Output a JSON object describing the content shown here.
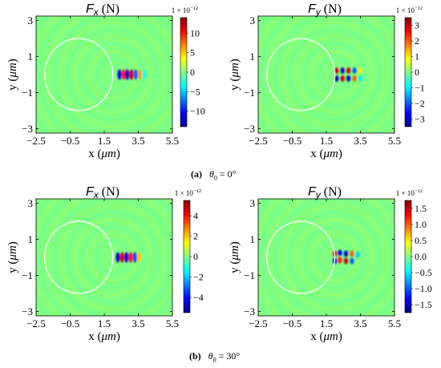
{
  "colormap": [
    "#00008f",
    "#0000ff",
    "#0080ff",
    "#00ffff",
    "#80ff80",
    "#ffff00",
    "#ff8000",
    "#ff0000",
    "#800000"
  ],
  "background_color": "#80ff80",
  "circle_color": "#ffffff",
  "chart_data": [
    {
      "type": "heatmap",
      "title_var": "F",
      "title_sub": "x",
      "title_unit": "(N)",
      "multiplier": "1 × 10",
      "exponent": "−12",
      "xlabel_var": "x",
      "xlabel_unit": "μm",
      "ylabel_var": "y",
      "ylabel_unit": "μm",
      "xlim": [
        -2.5,
        5.5
      ],
      "ylim": [
        -3.25,
        3.25
      ],
      "xticks": [
        -2.5,
        -0.5,
        1.5,
        3.5,
        5.5
      ],
      "xticklabels": [
        "−2.5",
        "−0.5",
        "1.5",
        "3.5",
        "5.5"
      ],
      "yticks": [
        -3,
        -1,
        1,
        3
      ],
      "yticklabels": [
        "−3",
        "−1",
        "1",
        "3"
      ],
      "clim": [
        -14,
        14
      ],
      "cticks": [
        10,
        5,
        0,
        -5,
        -10
      ],
      "cticklabels": [
        "10",
        "5",
        "0",
        "−5",
        "−10"
      ],
      "circle": {
        "cx": 0,
        "cy": 0,
        "r": 2
      },
      "hotspots": [
        {
          "x": 2.4,
          "y": 0,
          "v": -11
        },
        {
          "x": 2.65,
          "y": 0,
          "v": 10
        },
        {
          "x": 2.85,
          "y": 0,
          "v": -12
        },
        {
          "x": 3.1,
          "y": 0,
          "v": 12
        },
        {
          "x": 3.35,
          "y": 0,
          "v": -8
        },
        {
          "x": 3.6,
          "y": 0,
          "v": 6
        },
        {
          "x": 3.85,
          "y": 0,
          "v": -3
        }
      ]
    },
    {
      "type": "heatmap",
      "title_var": "F",
      "title_sub": "y",
      "title_unit": "(N)",
      "multiplier": "1 × 10",
      "exponent": "−12",
      "xlabel_var": "x",
      "xlabel_unit": "μm",
      "ylabel_var": "y",
      "ylabel_unit": "μm",
      "xlim": [
        -2.5,
        5.5
      ],
      "ylim": [
        -3.25,
        3.25
      ],
      "xticks": [
        -2.5,
        -0.5,
        1.5,
        3.5,
        5.5
      ],
      "xticklabels": [
        "−2.5",
        "−0.5",
        "1.5",
        "3.5",
        "5.5"
      ],
      "yticks": [
        -3,
        -1,
        1,
        3
      ],
      "yticklabels": [
        "−3",
        "−1",
        "1",
        "3"
      ],
      "clim": [
        -3.5,
        3.5
      ],
      "cticks": [
        3,
        2,
        1,
        0,
        -1,
        -2,
        -3
      ],
      "cticklabels": [
        "3",
        "2",
        "1",
        "0",
        "−1",
        "−2",
        "−3"
      ],
      "circle": {
        "cx": 0,
        "cy": 0,
        "r": 2
      },
      "hotspots": [
        {
          "x": 2.1,
          "y": 0.22,
          "v": 3
        },
        {
          "x": 2.1,
          "y": -0.22,
          "v": -3
        },
        {
          "x": 2.45,
          "y": 0.22,
          "v": -3
        },
        {
          "x": 2.45,
          "y": -0.22,
          "v": 3
        },
        {
          "x": 2.8,
          "y": 0.22,
          "v": 3
        },
        {
          "x": 2.8,
          "y": -0.22,
          "v": -3
        },
        {
          "x": 3.15,
          "y": 0.22,
          "v": -2
        },
        {
          "x": 3.15,
          "y": -0.22,
          "v": 2
        },
        {
          "x": 3.5,
          "y": 0.22,
          "v": 1
        },
        {
          "x": 3.5,
          "y": -0.22,
          "v": -1
        }
      ]
    },
    {
      "type": "heatmap",
      "title_var": "F",
      "title_sub": "x",
      "title_unit": "(N)",
      "multiplier": "1 × 10",
      "exponent": "−12",
      "xlabel_var": "x",
      "xlabel_unit": "μm",
      "ylabel_var": "y",
      "ylabel_unit": "μm",
      "xlim": [
        -2.5,
        5.5
      ],
      "ylim": [
        -3.25,
        3.25
      ],
      "xticks": [
        -2.5,
        -0.5,
        1.5,
        3.5,
        5.5
      ],
      "xticklabels": [
        "−2.5",
        "−0.5",
        "1.5",
        "3.5",
        "5.5"
      ],
      "yticks": [
        -3,
        -1,
        1,
        3
      ],
      "yticklabels": [
        "−3",
        "−1",
        "1",
        "3"
      ],
      "clim": [
        -5.5,
        5.5
      ],
      "cticks": [
        4,
        2,
        0,
        -2,
        -4
      ],
      "cticklabels": [
        "4",
        "2",
        "0",
        "−2",
        "−4"
      ],
      "circle": {
        "cx": 0,
        "cy": 0,
        "r": 2
      },
      "hotspots": [
        {
          "x": 2.3,
          "y": 0,
          "v": -4.5
        },
        {
          "x": 2.55,
          "y": 0,
          "v": 4.5
        },
        {
          "x": 2.8,
          "y": 0,
          "v": -4.5
        },
        {
          "x": 3.05,
          "y": 0,
          "v": 4
        },
        {
          "x": 3.3,
          "y": 0,
          "v": -3.5
        },
        {
          "x": 3.55,
          "y": 0,
          "v": 2
        }
      ]
    },
    {
      "type": "heatmap",
      "title_var": "F",
      "title_sub": "y",
      "title_unit": "(N)",
      "multiplier": "1 × 10",
      "exponent": "−12",
      "xlabel_var": "x",
      "xlabel_unit": "μm",
      "ylabel_var": "y",
      "ylabel_unit": "μm",
      "xlim": [
        -2.5,
        5.5
      ],
      "ylim": [
        -3.25,
        3.25
      ],
      "xticks": [
        -2.5,
        -0.5,
        1.5,
        3.5,
        5.5
      ],
      "xticklabels": [
        "−2.5",
        "−0.5",
        "1.5",
        "3.5",
        "5.5"
      ],
      "yticks": [
        -3,
        -1,
        1,
        3
      ],
      "yticklabels": [
        "−3",
        "−1",
        "1",
        "3"
      ],
      "clim": [
        -1.75,
        1.75
      ],
      "cticks": [
        1.5,
        1.0,
        0.5,
        0.0,
        -0.5,
        -1.0,
        -1.5
      ],
      "cticklabels": [
        "1.5",
        "1.0",
        "0.5",
        "0.0",
        "−0.5",
        "−1.0",
        "−1.5"
      ],
      "circle": {
        "cx": 0,
        "cy": 0,
        "r": 2
      },
      "hotspots": [
        {
          "x": 2.0,
          "y": 0.2,
          "v": 1.4
        },
        {
          "x": 2.0,
          "y": -0.2,
          "v": -1.4
        },
        {
          "x": 2.3,
          "y": 0.25,
          "v": -1.3
        },
        {
          "x": 2.3,
          "y": -0.15,
          "v": 1.2
        },
        {
          "x": 2.65,
          "y": 0.2,
          "v": -1.5
        },
        {
          "x": 2.65,
          "y": -0.2,
          "v": 1.5
        },
        {
          "x": 3.0,
          "y": 0.2,
          "v": 1.0
        },
        {
          "x": 3.0,
          "y": -0.2,
          "v": -1.0
        },
        {
          "x": 3.35,
          "y": 0.15,
          "v": -0.6
        }
      ]
    }
  ],
  "captions": [
    {
      "letter": "(a)",
      "theta": "θ",
      "sub": "0",
      "equals": " = 0°"
    },
    {
      "letter": "(b)",
      "theta": "θ",
      "sub": "0",
      "equals": " = 30°"
    }
  ]
}
